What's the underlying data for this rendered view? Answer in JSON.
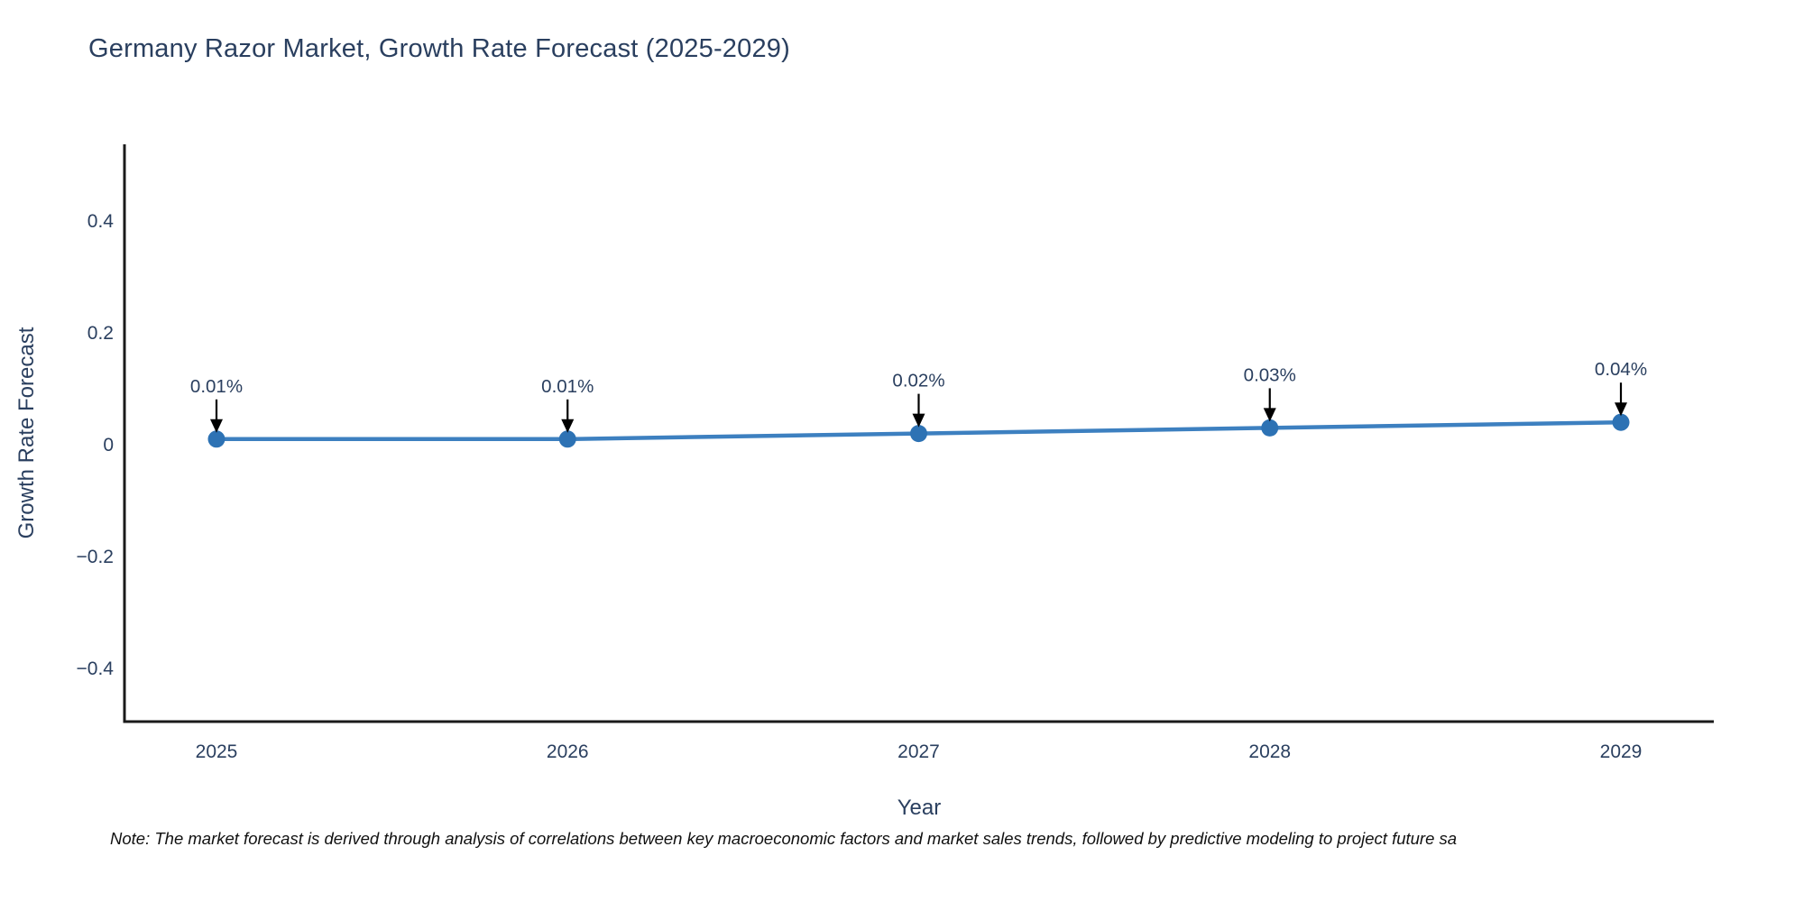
{
  "note": "Note: The market forecast is derived through analysis of correlations between key macroeconomic factors and market sales trends, followed by predictive modeling to project future sa",
  "chart_data": {
    "type": "line",
    "title": "Germany Razor Market, Growth Rate Forecast (2025-2029)",
    "xlabel": "Year",
    "ylabel": "Growth Rate Forecast",
    "categories": [
      "2025",
      "2026",
      "2027",
      "2028",
      "2029"
    ],
    "x": [
      2025,
      2026,
      2027,
      2028,
      2029
    ],
    "values": [
      0.01,
      0.01,
      0.02,
      0.03,
      0.04
    ],
    "point_labels": [
      "0.01%",
      "0.01%",
      "0.02%",
      "0.03%",
      "0.04%"
    ],
    "yticks": [
      0.4,
      0.2,
      0,
      -0.2,
      -0.4
    ],
    "ytick_labels": [
      "0.4",
      "0.2",
      "0",
      "−0.2",
      "−0.4"
    ],
    "ylim": [
      -0.49,
      0.54
    ],
    "grid": false,
    "legend_position": "none",
    "annotation_style": "down-arrow",
    "colors": {
      "line": "#3d80c0",
      "marker": "#2d72b4",
      "title_text": "#2a3f5f",
      "tick_text": "#2a3f5f",
      "axis_line": "#1a1a1a",
      "annotation_text": "#2a3f5f",
      "annotation_arrow": "#000000",
      "note_text": "#111111",
      "background": "#ffffff"
    }
  }
}
